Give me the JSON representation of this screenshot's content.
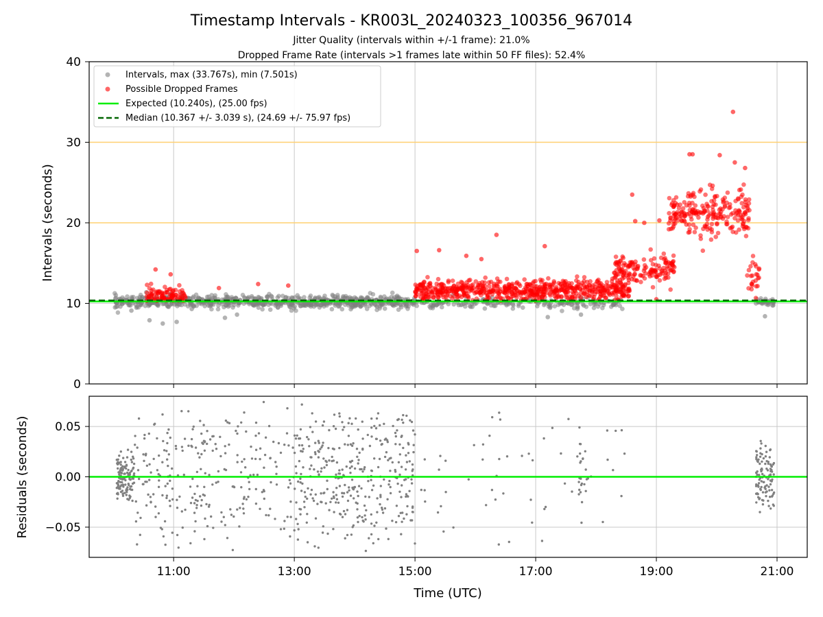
{
  "figure": {
    "title": "Timestamp Intervals - KR003L_20240323_100356_967014",
    "subtitle_line1": "Jitter Quality (intervals within +/-1 frame): 21.0%",
    "subtitle_line2": "Dropped Frame Rate (intervals >1 frames late within 50 FF files): 52.4%"
  },
  "colors": {
    "normal_points": "#808080",
    "dropped_points": "#ff0000",
    "expected_line": "#00ee00",
    "median_line": "#006400",
    "threshold_lines": "#ffd070",
    "grid": "#c8c8c8"
  },
  "chart_data": [
    {
      "type": "scatter",
      "ylabel": "Intervals (seconds)",
      "xlim": [
        9.6,
        21.5
      ],
      "ylim": [
        0,
        40
      ],
      "yticks": [
        0,
        10,
        20,
        30,
        40
      ],
      "grid": true,
      "legend_position": "top-left",
      "legend": {
        "intervals": "Intervals, max (33.767s), min (7.501s)",
        "dropped": "Possible Dropped Frames",
        "expected": "Expected (10.240s), (25.00 fps)",
        "median": "Median (10.367 +/- 3.039 s), (24.69 +/- 75.97 fps)"
      },
      "expected_value": 10.24,
      "median_value": 10.367,
      "threshold_lines": [
        20,
        30
      ],
      "series": [
        {
          "name": "Intervals, max (33.767s), min (7.501s)",
          "segments": [
            {
              "x_start": 10.02,
              "x_end": 15.0,
              "y_mean": 10.2,
              "y_spread": 0.7,
              "count": 700
            },
            {
              "x_start": 15.0,
              "x_end": 18.45,
              "y_mean": 10.0,
              "y_spread": 0.6,
              "count": 180
            },
            {
              "x_start": 20.65,
              "x_end": 20.95,
              "y_mean": 10.2,
              "y_spread": 0.4,
              "count": 40
            }
          ],
          "points": [
            [
              10.6,
              7.9
            ],
            [
              10.82,
              7.501
            ],
            [
              11.05,
              7.7
            ],
            [
              11.85,
              8.2
            ],
            [
              12.05,
              8.6
            ],
            [
              17.2,
              8.3
            ],
            [
              17.75,
              8.6
            ],
            [
              20.8,
              8.4
            ],
            [
              10.3,
              9.1
            ],
            [
              11.3,
              9.3
            ]
          ]
        },
        {
          "name": "Possible Dropped Frames",
          "segments": [
            {
              "x_start": 10.55,
              "x_end": 11.2,
              "y_mean": 11.0,
              "y_spread": 1.1,
              "count": 90
            },
            {
              "x_start": 15.0,
              "x_end": 18.55,
              "y_mean": 11.6,
              "y_spread": 1.2,
              "count": 650
            },
            {
              "x_start": 18.3,
              "x_end": 19.3,
              "y_mean": 14.0,
              "y_spread": 1.8,
              "count": 150
            },
            {
              "x_start": 19.2,
              "x_end": 20.55,
              "y_mean": 21.0,
              "y_spread": 2.7,
              "count": 230
            },
            {
              "x_start": 20.5,
              "x_end": 20.72,
              "y_mean": 13.0,
              "y_spread": 2.0,
              "count": 25
            }
          ],
          "points": [
            [
              20.27,
              33.767
            ],
            [
              19.55,
              28.5
            ],
            [
              19.6,
              28.5
            ],
            [
              20.05,
              28.4
            ],
            [
              16.35,
              18.5
            ],
            [
              15.03,
              16.5
            ],
            [
              15.4,
              16.6
            ],
            [
              17.15,
              17.1
            ],
            [
              18.6,
              23.5
            ],
            [
              15.85,
              15.9
            ],
            [
              16.1,
              15.5
            ],
            [
              12.4,
              12.4
            ],
            [
              12.9,
              12.2
            ],
            [
              11.75,
              11.9
            ],
            [
              10.7,
              14.2
            ],
            [
              10.95,
              13.6
            ],
            [
              19.0,
              10.5
            ],
            [
              18.65,
              20.2
            ],
            [
              18.8,
              20.0
            ],
            [
              19.05,
              20.3
            ],
            [
              20.3,
              27.5
            ],
            [
              20.47,
              26.8
            ]
          ]
        }
      ]
    },
    {
      "type": "scatter",
      "xlabel": "Time (UTC)",
      "ylabel": "Residuals (seconds)",
      "xlim": [
        9.6,
        21.5
      ],
      "ylim": [
        -0.08,
        0.08
      ],
      "xticks": [
        11,
        13,
        15,
        17,
        19,
        21
      ],
      "xtick_labels": [
        "11:00",
        "13:00",
        "15:00",
        "17:00",
        "19:00",
        "21:00"
      ],
      "yticks": [
        -0.05,
        0.0,
        0.05
      ],
      "ytick_labels": [
        "−0.05",
        "0.00",
        "0.05"
      ],
      "grid": true,
      "zero_line": 0.0,
      "series": [
        {
          "segments": [
            {
              "x_start": 10.05,
              "x_end": 10.35,
              "y_spread": 0.03,
              "count": 130
            },
            {
              "x_start": 10.35,
              "x_end": 13.0,
              "y_spread": 0.08,
              "count": 260
            },
            {
              "x_start": 13.0,
              "x_end": 15.0,
              "y_spread": 0.075,
              "count": 360
            },
            {
              "x_start": 15.0,
              "x_end": 18.5,
              "y_spread": 0.08,
              "count": 55
            },
            {
              "x_start": 17.7,
              "x_end": 17.85,
              "y_spread": 0.06,
              "count": 22
            },
            {
              "x_start": 20.65,
              "x_end": 20.95,
              "y_spread": 0.04,
              "count": 110
            }
          ]
        }
      ]
    }
  ]
}
